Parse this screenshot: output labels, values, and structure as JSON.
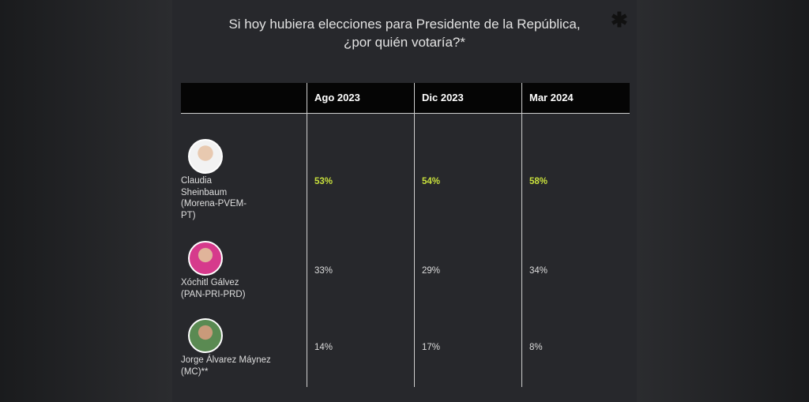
{
  "title": [
    "Si hoy hubiera elecciones para Presidente de la República,",
    "¿por quién votaría?*"
  ],
  "table": {
    "header": [
      "Ago 2023",
      "Dic 2023",
      "Mar 2024"
    ],
    "rows": [
      {
        "name": [
          "Claudia",
          "Sheinbaum",
          "(Morena-PVEM-",
          "PT)"
        ],
        "values": [
          "53%",
          "54%",
          "58%"
        ],
        "highlight": true
      },
      {
        "name": [
          "Xóchitl Gálvez",
          "(PAN-PRI-PRD)"
        ],
        "values": [
          "33%",
          "29%",
          "34%"
        ],
        "highlight": false
      },
      {
        "name": [
          "Jorge Álvarez Máynez",
          "(MC)**"
        ],
        "values": [
          "14%",
          "17%",
          "8%"
        ],
        "highlight": false
      }
    ]
  }
}
